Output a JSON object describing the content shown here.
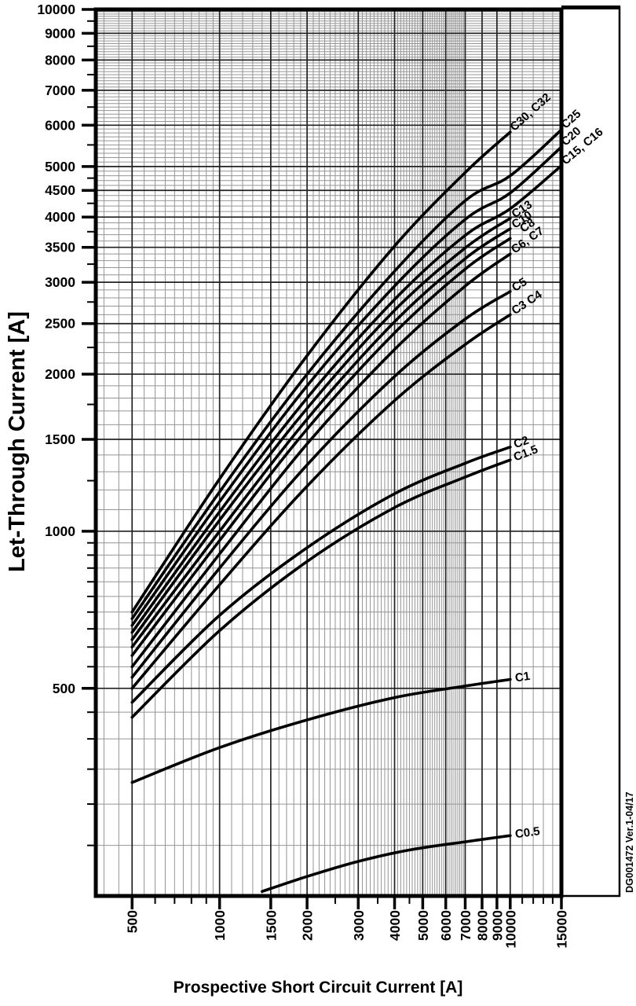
{
  "chart_data": {
    "type": "line",
    "title": "",
    "xlabel": "Prospective Short Circuit Current [A]",
    "ylabel": "Let-Through Current [A]",
    "x_scale": "log",
    "y_scale": "log",
    "xlim": [
      375,
      15000
    ],
    "ylim": [
      200,
      10000
    ],
    "grid": "on",
    "legend_position": "curve-end-labels",
    "x_tick_values": [
      500,
      1000,
      1500,
      2000,
      3000,
      4000,
      5000,
      6000,
      7000,
      8000,
      9000,
      10000,
      15000
    ],
    "x_tick_labels": [
      "500",
      "1000",
      "1500",
      "2000",
      "3000",
      "4000",
      "5000",
      "6000",
      "7000",
      "8000",
      "9000",
      "10000",
      "15000"
    ],
    "x_minor_tick_values": [
      600,
      700,
      800,
      900,
      2500,
      3500,
      4500,
      11000,
      12000,
      13000,
      14000
    ],
    "y_tick_values": [
      10000,
      9000,
      8000,
      7000,
      6000,
      5000,
      4500,
      4000,
      3500,
      3000,
      2500,
      2000,
      1500,
      1000,
      500
    ],
    "y_tick_labels": [
      "10000",
      "9000",
      "8000",
      "7000",
      "6000",
      "5000",
      "4500",
      "4000",
      "3500",
      "3000",
      "2500",
      "2000",
      "1500",
      "1000",
      "500"
    ],
    "y_minor_tick_values": [
      9500,
      8500,
      7500,
      6500,
      5500,
      4750,
      4250,
      3750,
      3250,
      2750,
      2250,
      1750,
      1250,
      950,
      900,
      850,
      800,
      750,
      700,
      650,
      600,
      550,
      450,
      400,
      350,
      300,
      250
    ],
    "series": [
      {
        "label": "C30, C32",
        "x": [
          500,
          1000,
          2000,
          4000,
          7000,
          10000
        ],
        "y": [
          700,
          1260,
          2170,
          3520,
          4870,
          5820
        ]
      },
      {
        "label": "C25",
        "x": [
          500,
          1000,
          2000,
          4000,
          7000,
          10000,
          15000
        ],
        "y": [
          680,
          1190,
          2000,
          3150,
          4300,
          4800,
          5880
        ]
      },
      {
        "label": "C20",
        "x": [
          500,
          1000,
          2000,
          4000,
          7000,
          10000,
          15000
        ],
        "y": [
          660,
          1140,
          1900,
          2950,
          3960,
          4450,
          5450
        ]
      },
      {
        "label": "C15, C16",
        "x": [
          500,
          1000,
          2000,
          4000,
          7000,
          10000,
          15000
        ],
        "y": [
          640,
          1090,
          1800,
          2780,
          3690,
          4150,
          5020
        ]
      },
      {
        "label": "C13",
        "x": [
          500,
          1000,
          2000,
          4000,
          7000,
          10000
        ],
        "y": [
          620,
          1050,
          1720,
          2650,
          3490,
          3980
        ]
      },
      {
        "label": "C10",
        "x": [
          500,
          1000,
          2000,
          4000,
          7000,
          10000
        ],
        "y": [
          600,
          1000,
          1640,
          2520,
          3330,
          3800
        ]
      },
      {
        "label": "C8",
        "x": [
          500,
          1000,
          2000,
          4000,
          7000,
          10000
        ],
        "y": [
          578,
          960,
          1570,
          2400,
          3180,
          3640
        ]
      },
      {
        "label": "C6, C7",
        "x": [
          500,
          1000,
          2000,
          4000,
          7000,
          10000
        ],
        "y": [
          550,
          905,
          1470,
          2230,
          2950,
          3400
        ]
      },
      {
        "label": "C5",
        "x": [
          500,
          1000,
          2000,
          4000,
          7000,
          10000
        ],
        "y": [
          525,
          850,
          1340,
          1980,
          2550,
          2880
        ]
      },
      {
        "label": "C3 C4",
        "x": [
          500,
          1000,
          2000,
          4000,
          7000,
          10000
        ],
        "y": [
          500,
          790,
          1220,
          1780,
          2280,
          2600
        ]
      },
      {
        "label": "C2",
        "x": [
          500,
          1000,
          2000,
          4000,
          7000,
          10000
        ],
        "y": [
          470,
          690,
          930,
          1180,
          1350,
          1450
        ]
      },
      {
        "label": "C1.5",
        "x": [
          500,
          1000,
          2000,
          4000,
          7000,
          10000
        ],
        "y": [
          440,
          645,
          875,
          1110,
          1270,
          1370
        ]
      },
      {
        "label": "C1",
        "x": [
          500,
          1000,
          2000,
          4000,
          7000,
          10000
        ],
        "y": [
          330,
          385,
          435,
          480,
          505,
          520
        ]
      },
      {
        "label": "C0.5",
        "x": [
          1400,
          2000,
          3000,
          4500,
          7000,
          10000
        ],
        "y": [
          204,
          218,
          233,
          245,
          254,
          261
        ]
      }
    ]
  },
  "footer": {
    "doc_ref": "DG001472  Ver.1-04/17"
  }
}
